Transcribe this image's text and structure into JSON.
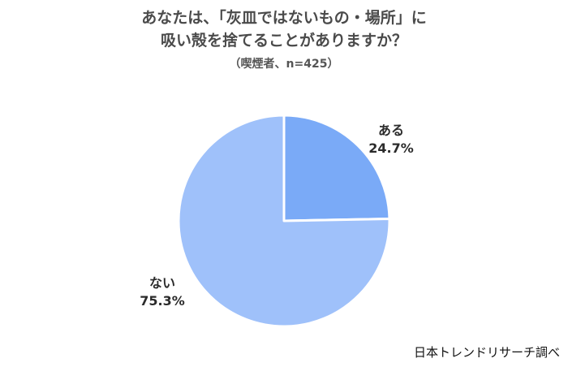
{
  "chart_data": {
    "type": "pie",
    "title_line1": "あなたは、「灰皿ではないもの・場所」に",
    "title_line2": "吸い殻を捨てることがありますか？",
    "subtitle": "（喫煙者、n=425）",
    "slices": [
      {
        "label": "ある",
        "value": 24.7,
        "value_text": "24.7%",
        "color": "#7aaaf7"
      },
      {
        "label": "ない",
        "value": 75.3,
        "value_text": "75.3%",
        "color": "#9fc1fa"
      }
    ],
    "start_angle_deg": 0,
    "direction": "clockwise"
  },
  "source": "日本トレンドリサーチ調べ"
}
